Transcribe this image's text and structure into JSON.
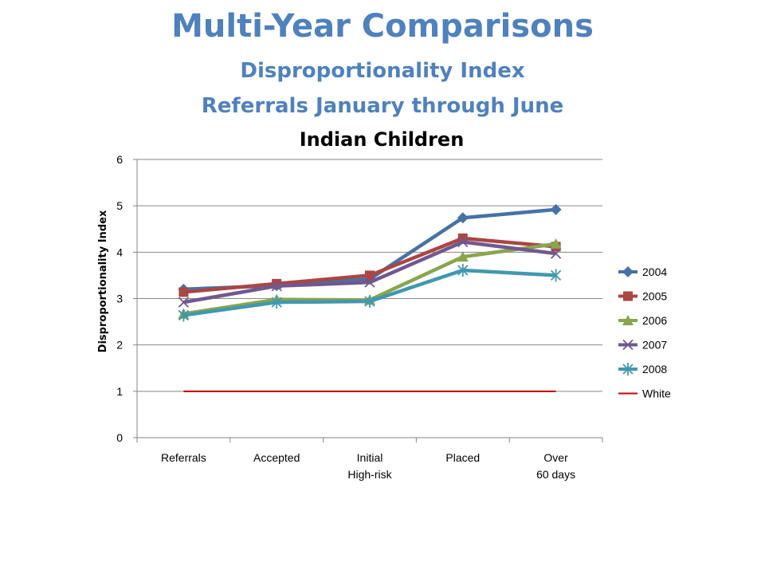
{
  "slide": {
    "title": "Multi-Year Comparisons",
    "subtitle": "Disproportionality Index",
    "subtitle2": "Referrals January through June"
  },
  "chart_data": {
    "type": "line",
    "title": "Indian Children",
    "xlabel": "",
    "ylabel": "Disproportionality Index",
    "ylim": [
      0,
      6
    ],
    "yticks": [
      0,
      1,
      2,
      3,
      4,
      5,
      6
    ],
    "grid": true,
    "legend_position": "right",
    "categories": [
      [
        "Referrals"
      ],
      [
        "Accepted"
      ],
      [
        "Initial",
        "High-risk"
      ],
      [
        "Placed"
      ],
      [
        "Over",
        "60 days"
      ]
    ],
    "series": [
      {
        "name": "2004",
        "color": "#4572a7",
        "marker": "diamond",
        "values": [
          3.2,
          3.28,
          3.42,
          4.74,
          4.92
        ]
      },
      {
        "name": "2005",
        "color": "#aa4643",
        "marker": "square",
        "values": [
          3.14,
          3.32,
          3.5,
          4.3,
          4.12
        ]
      },
      {
        "name": "2006",
        "color": "#89a54e",
        "marker": "triangle",
        "values": [
          2.67,
          2.98,
          2.97,
          3.9,
          4.18
        ]
      },
      {
        "name": "2007",
        "color": "#71588f",
        "marker": "x",
        "values": [
          2.92,
          3.27,
          3.35,
          4.22,
          3.97
        ]
      },
      {
        "name": "2008",
        "color": "#4198af",
        "marker": "star",
        "values": [
          2.64,
          2.92,
          2.94,
          3.61,
          3.5
        ]
      },
      {
        "name": "White",
        "color": "#c00000",
        "marker": "none",
        "values": [
          1,
          1,
          1,
          1,
          1
        ]
      }
    ]
  }
}
